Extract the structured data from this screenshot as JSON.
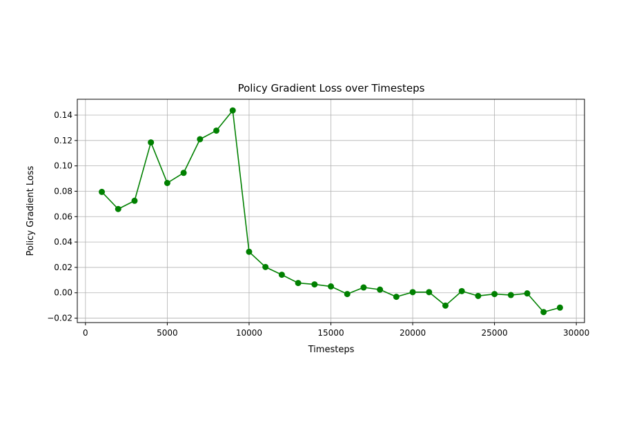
{
  "chart_data": {
    "type": "line",
    "title": "Policy Gradient Loss over Timesteps",
    "xlabel": "Timesteps",
    "ylabel": "Policy Gradient Loss",
    "xlim": [
      -500,
      30500
    ],
    "ylim": [
      -0.0235,
      0.1525
    ],
    "x_ticks": [
      {
        "value": 0,
        "label": "0"
      },
      {
        "value": 5000,
        "label": "5000"
      },
      {
        "value": 10000,
        "label": "10000"
      },
      {
        "value": 15000,
        "label": "15000"
      },
      {
        "value": 20000,
        "label": "20000"
      },
      {
        "value": 25000,
        "label": "25000"
      },
      {
        "value": 30000,
        "label": "30000"
      }
    ],
    "y_ticks": [
      {
        "value": -0.02,
        "label": "−0.02"
      },
      {
        "value": 0.0,
        "label": "0.00"
      },
      {
        "value": 0.02,
        "label": "0.02"
      },
      {
        "value": 0.04,
        "label": "0.04"
      },
      {
        "value": 0.06,
        "label": "0.06"
      },
      {
        "value": 0.08,
        "label": "0.08"
      },
      {
        "value": 0.1,
        "label": "0.10"
      },
      {
        "value": 0.12,
        "label": "0.12"
      },
      {
        "value": 0.14,
        "label": "0.14"
      }
    ],
    "grid": true,
    "series": [
      {
        "color": "#008000",
        "marker": "circle",
        "x": [
          1000,
          2000,
          3000,
          4000,
          5000,
          6000,
          7000,
          8000,
          9000,
          10000,
          11000,
          12000,
          13000,
          14000,
          15000,
          16000,
          17000,
          18000,
          19000,
          20000,
          21000,
          22000,
          23000,
          24000,
          25000,
          26000,
          27000,
          28000,
          29000
        ],
        "y": [
          0.0795,
          0.066,
          0.0725,
          0.1185,
          0.0865,
          0.0945,
          0.121,
          0.1278,
          0.1437,
          0.0323,
          0.0203,
          0.0142,
          0.0077,
          0.0066,
          0.005,
          -0.001,
          0.0042,
          0.0025,
          -0.0032,
          0.0005,
          0.0005,
          -0.0101,
          0.0013,
          -0.0025,
          -0.001,
          -0.0018,
          -0.0005,
          -0.0152,
          -0.0117
        ]
      }
    ]
  }
}
